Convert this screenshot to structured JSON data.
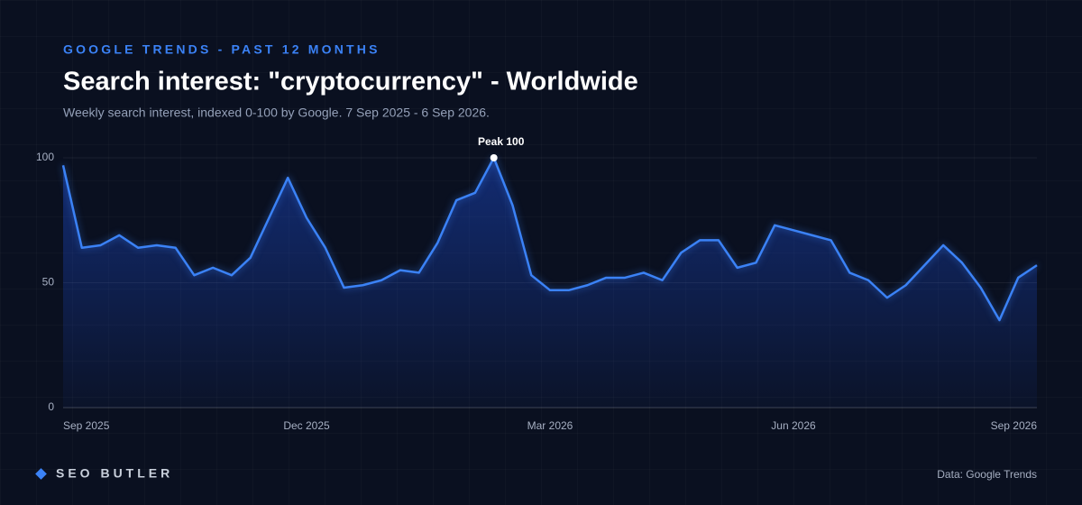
{
  "chart_data": {
    "type": "line",
    "kicker": "GOOGLE TRENDS - PAST 12 MONTHS",
    "title": "Search interest: \"cryptocurrency\" - Worldwide",
    "subtitle": "Weekly search interest, indexed 0-100 by Google. 7 Sep 2025 - 6 Sep 2026.",
    "annotation": "Peak 100",
    "brand": "SEO BUTLER",
    "source": "Data: Google Trends",
    "color": "#3b82f6",
    "values": [
      97,
      64,
      65,
      69,
      64,
      65,
      64,
      53,
      56,
      53,
      60,
      76,
      92,
      76,
      64,
      48,
      49,
      51,
      55,
      54,
      66,
      83,
      86,
      100,
      81,
      53,
      47,
      47,
      49,
      52,
      52,
      54,
      51,
      62,
      67,
      67,
      56,
      58,
      73,
      71,
      69,
      67,
      54,
      51,
      44,
      49,
      57,
      65,
      58,
      48,
      35,
      52,
      57
    ],
    "xticks": [
      {
        "value": 0,
        "label": "Sep 2025"
      },
      {
        "value": 13,
        "label": "Dec 2025"
      },
      {
        "value": 26,
        "label": "Mar 2026"
      },
      {
        "value": 39,
        "label": "Jun 2026"
      },
      {
        "value": 52,
        "label": "Sep 2026"
      }
    ],
    "xlim": [
      0,
      52
    ],
    "ylim": [
      0,
      100
    ],
    "yticks": [
      0,
      50,
      100
    ],
    "grid": true
  }
}
